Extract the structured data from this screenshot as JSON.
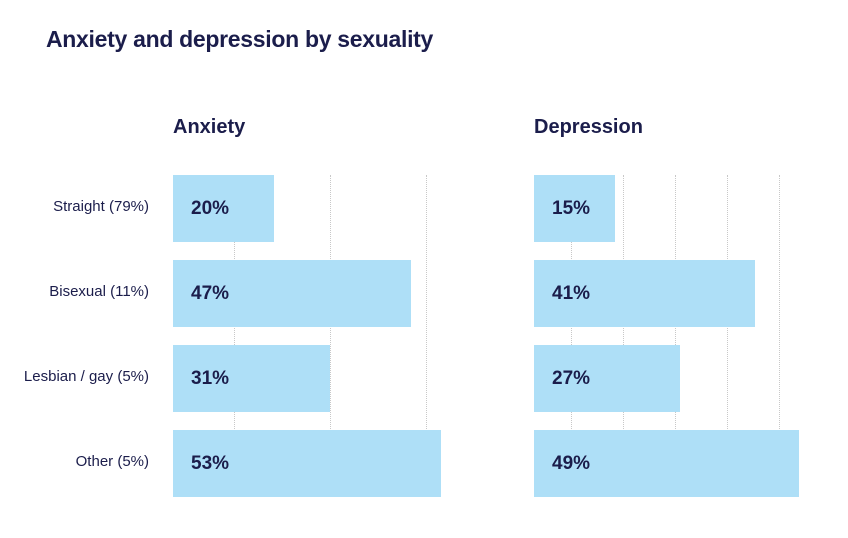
{
  "title": "Anxiety and depression by sexuality",
  "chart_data": [
    {
      "type": "bar",
      "orientation": "horizontal",
      "title": "Anxiety",
      "categories": [
        "Straight (79%)",
        "Bisexual (11%)",
        "Lesbian / gay (5%)",
        "Other (5%)"
      ],
      "values": [
        20,
        47,
        31,
        53
      ],
      "labels": [
        "20%",
        "47%",
        "31%",
        "53%"
      ],
      "xlim": [
        0,
        60
      ],
      "grid": true,
      "color": "#aedff7"
    },
    {
      "type": "bar",
      "orientation": "horizontal",
      "title": "Depression",
      "categories": [
        "Straight (79%)",
        "Bisexual (11%)",
        "Lesbian / gay (5%)",
        "Other (5%)"
      ],
      "values": [
        15,
        41,
        27,
        49
      ],
      "labels": [
        "15%",
        "41%",
        "27%",
        "49%"
      ],
      "xlim": [
        0,
        55
      ],
      "grid": true,
      "color": "#aedff7"
    }
  ]
}
